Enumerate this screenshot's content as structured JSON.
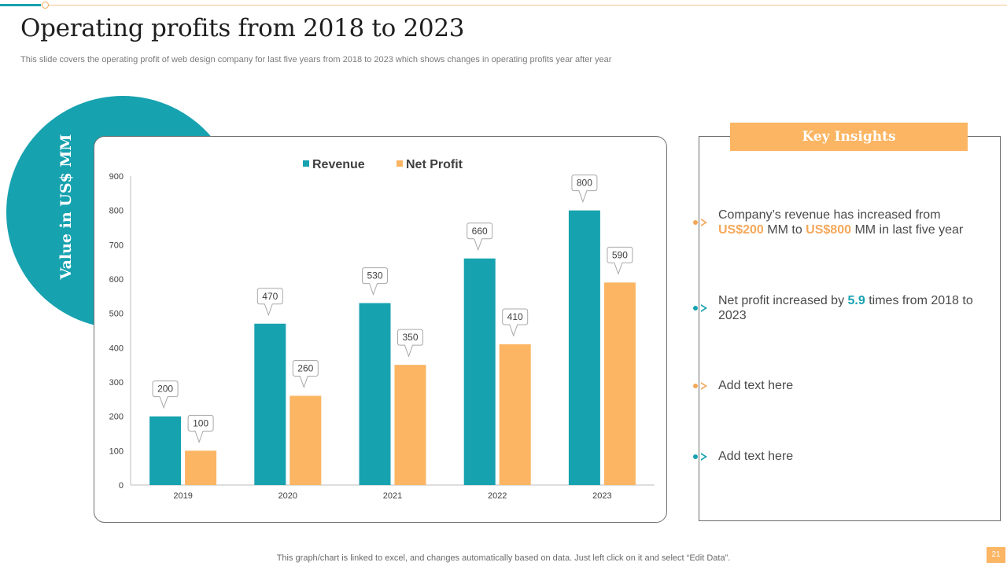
{
  "slide": {
    "title": "Operating profits from 2018 to 2023",
    "subtitle": "This slide covers the operating profit of web design company for last five years from 2018 to 2023 which shows changes in operating profits year after year",
    "y_axis_label": "Value in US$ MM",
    "footer_note": "This graph/chart is linked to excel,  and changes automatically based on data. Just left click on it and select “Edit Data”.",
    "page_number": "21"
  },
  "insights": {
    "header": "Key Insights",
    "items": [
      {
        "pre": "Company’s revenue  has increased from ",
        "hl1": "US$200",
        "mid": " MM to ",
        "hl2": "US$800",
        "post": " MM in last five year"
      },
      {
        "pre": "Net profit increased by ",
        "hl1": "5.9",
        "post": " times from 2018 to 2023"
      },
      {
        "text": "Add text here"
      },
      {
        "text": "Add text here"
      }
    ]
  },
  "colors": {
    "revenue": "#17a2b0",
    "net_profit": "#fbb563",
    "accent_orange": "#f4a85a",
    "accent_teal": "#17a2b0"
  },
  "chart_data": {
    "type": "bar",
    "categories": [
      "2019",
      "2020",
      "2021",
      "2022",
      "2023"
    ],
    "series": [
      {
        "name": "Revenue",
        "values": [
          200,
          470,
          530,
          660,
          800
        ]
      },
      {
        "name": "Net Profit",
        "values": [
          100,
          260,
          350,
          410,
          590
        ]
      }
    ],
    "y_ticks": [
      0,
      100,
      200,
      300,
      400,
      500,
      600,
      700,
      800,
      900
    ],
    "ylim": [
      0,
      900
    ],
    "ylabel": "Value in US$ MM",
    "legend": "top-center",
    "grid": false
  }
}
